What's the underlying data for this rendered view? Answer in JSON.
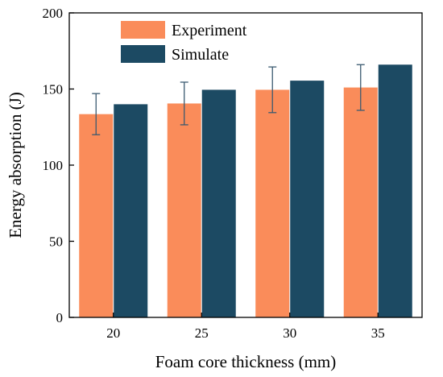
{
  "chart_data": {
    "type": "bar",
    "title": "",
    "xlabel": "Foam core thickness (mm)",
    "ylabel": "Energy absorption (J)",
    "categories": [
      "20",
      "25",
      "30",
      "35"
    ],
    "ylim": [
      0,
      200
    ],
    "yticks": [
      0,
      50,
      100,
      150,
      200
    ],
    "grid": false,
    "legend_position": "top-left",
    "series": [
      {
        "name": "Experiment",
        "color": "#FA8C5A",
        "values": [
          133.5,
          140.5,
          149.5,
          151.0
        ],
        "error": [
          13.5,
          14.0,
          15.0,
          15.0
        ]
      },
      {
        "name": "Simulate",
        "color": "#1C4A63",
        "values": [
          140.0,
          149.5,
          155.5,
          166.0
        ]
      }
    ]
  }
}
